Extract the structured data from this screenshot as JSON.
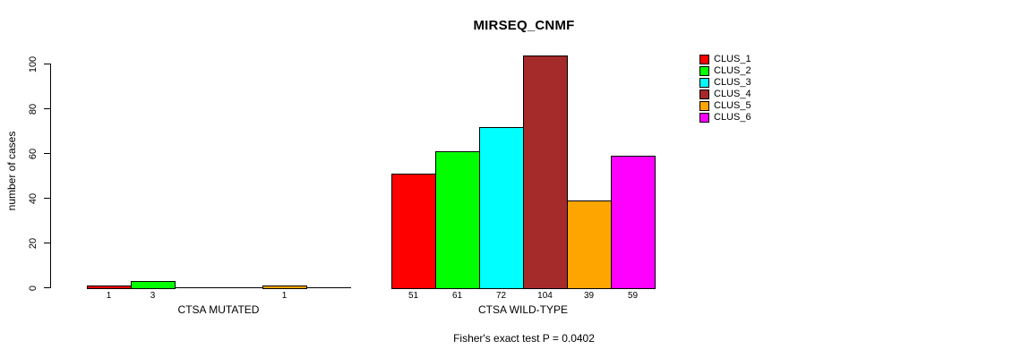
{
  "chart_data": {
    "type": "bar",
    "title": "MIRSEQ_CNMF",
    "ylabel": "number of cases",
    "xlabel": "",
    "ylim": [
      0,
      100
    ],
    "yticks": [
      0,
      20,
      40,
      60,
      80,
      100
    ],
    "grid": false,
    "legend_position": "right",
    "series": [
      {
        "name": "CLUS_1",
        "color": "#FF0000"
      },
      {
        "name": "CLUS_2",
        "color": "#00FF00"
      },
      {
        "name": "CLUS_3",
        "color": "#00FFFF"
      },
      {
        "name": "CLUS_4",
        "color": "#A52A2A"
      },
      {
        "name": "CLUS_5",
        "color": "#FFA500"
      },
      {
        "name": "CLUS_6",
        "color": "#FF00FF"
      }
    ],
    "groups": [
      {
        "label": "CTSA MUTATED",
        "values": [
          1,
          3,
          0,
          0,
          1,
          0
        ]
      },
      {
        "label": "CTSA WILD-TYPE",
        "values": [
          51,
          61,
          72,
          104,
          39,
          59
        ]
      }
    ],
    "annotation": "Fisher's exact test P = 0.0402",
    "bar_border_color": "#000000",
    "background_color": "#FFFFFF"
  }
}
